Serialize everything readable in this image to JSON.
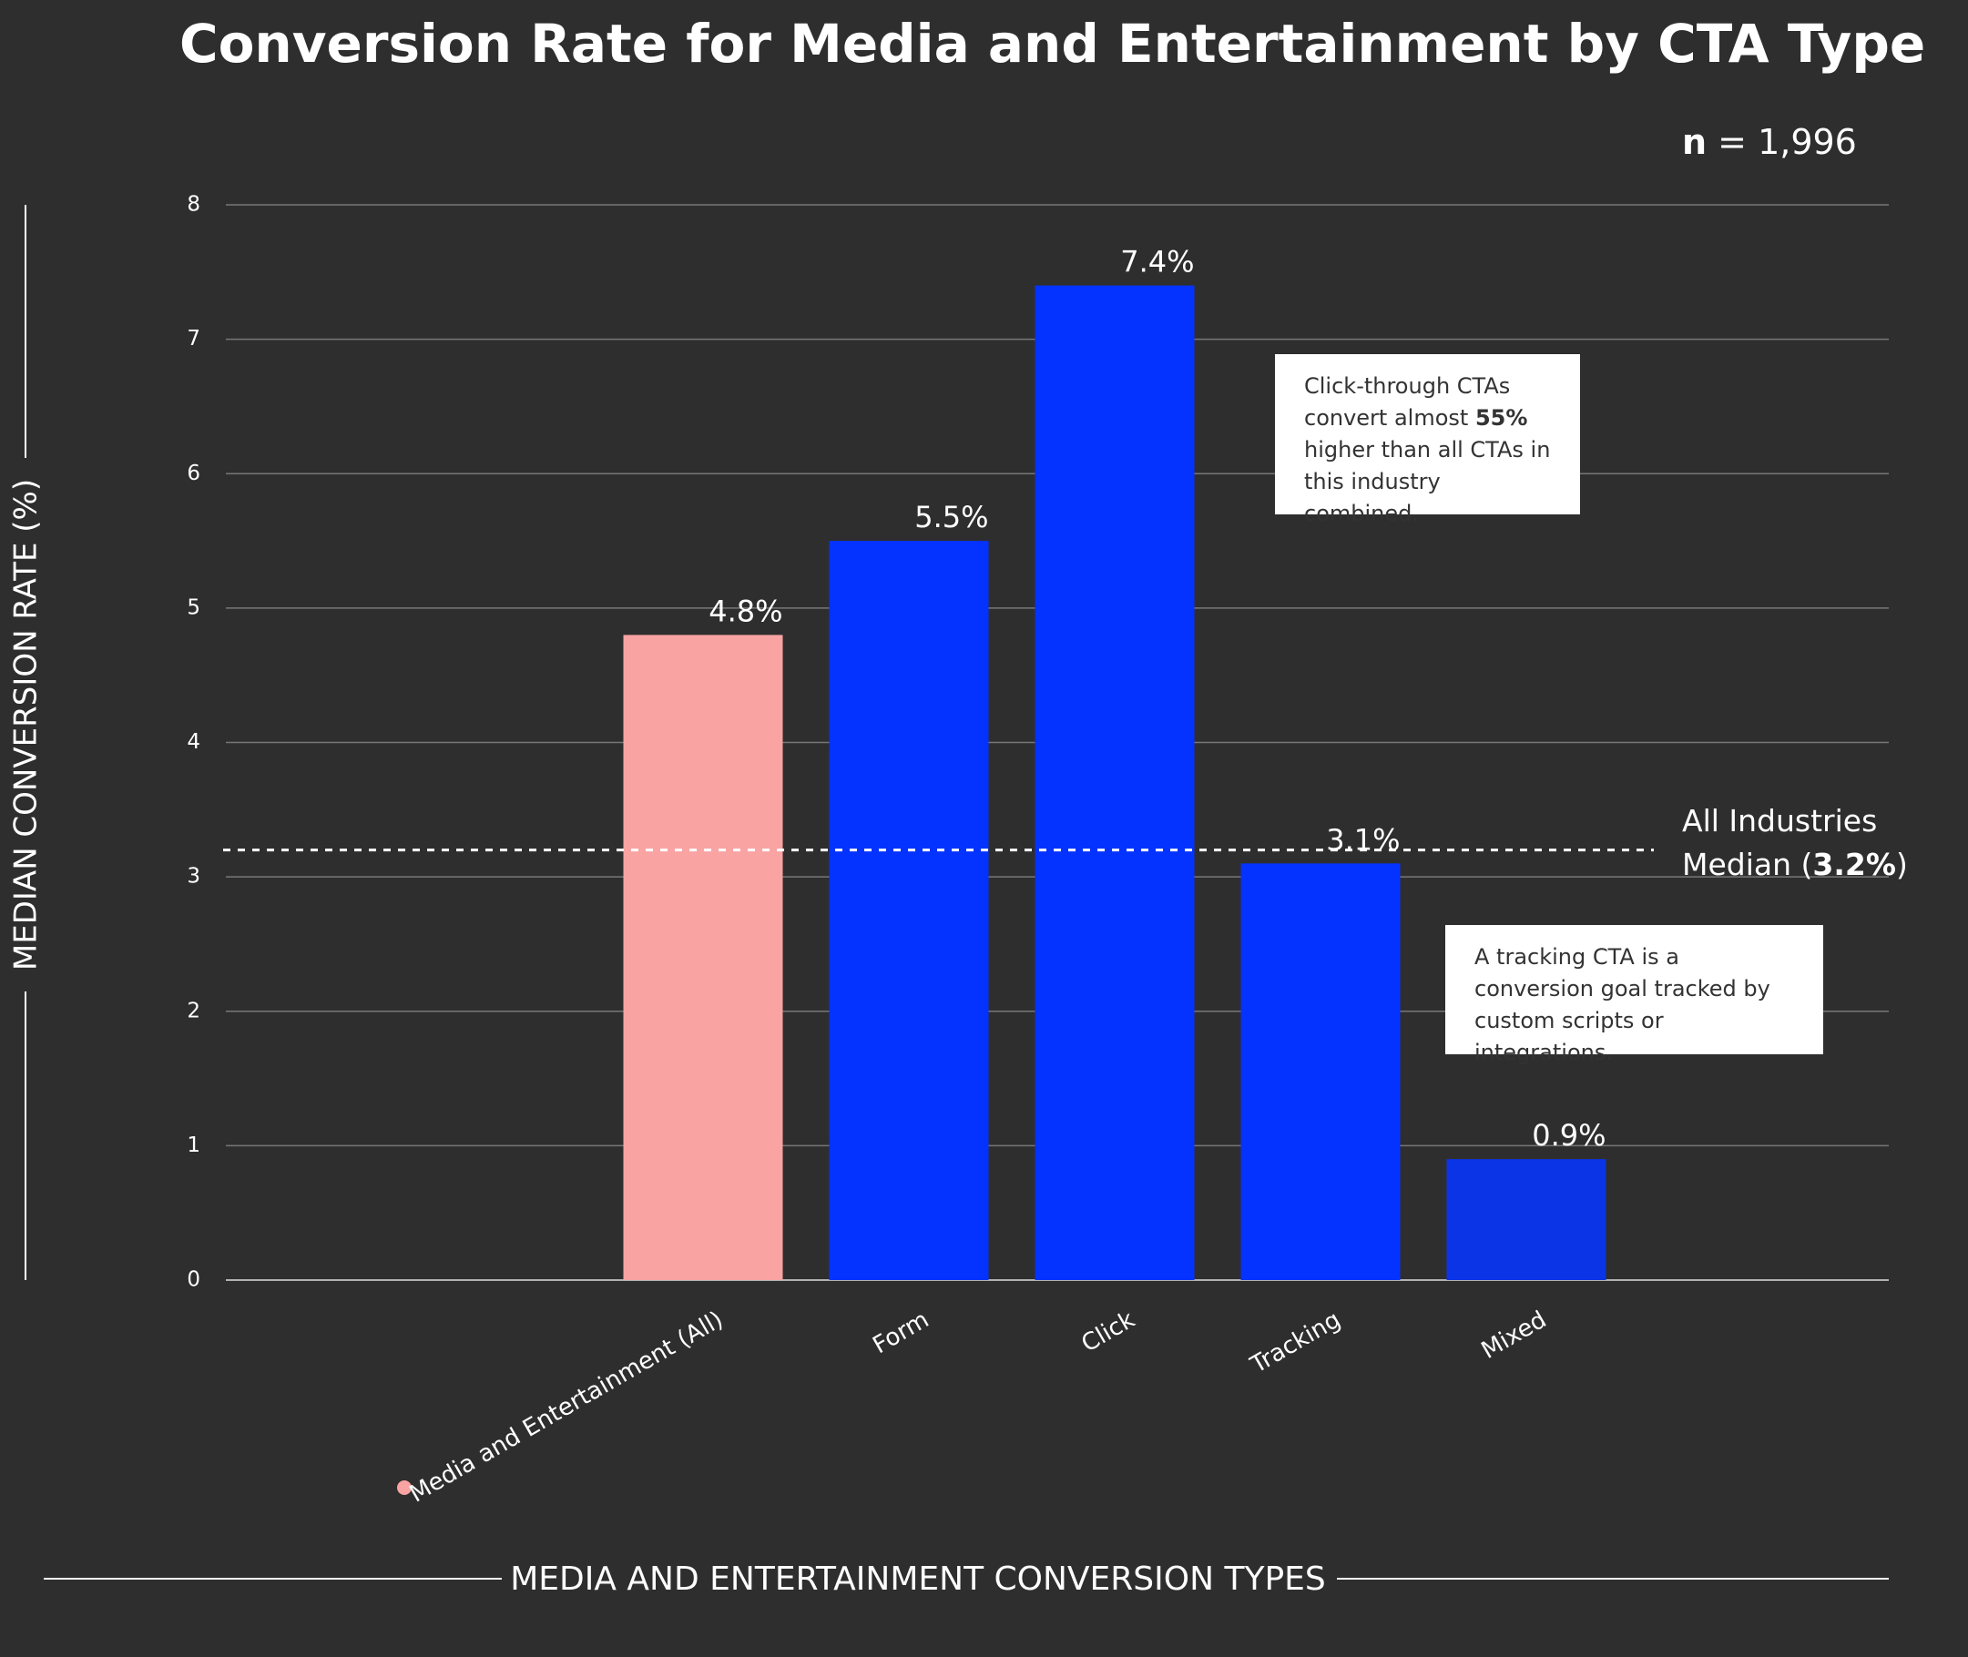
{
  "chart_data": {
    "type": "bar",
    "title": "Conversion Rate for Media and Entertainment by CTA Type",
    "sample_size": {
      "label": "n",
      "text": "= 1,996"
    },
    "categories": [
      "Media and Entertainment (All)",
      "Form",
      "Click",
      "Tracking",
      "Mixed"
    ],
    "values": [
      4.8,
      5.5,
      7.4,
      3.1,
      0.9
    ],
    "value_labels": [
      "4.8%",
      "5.5%",
      "7.4%",
      "3.1%",
      "0.9%"
    ],
    "colors": [
      "#f9a3a3",
      "#0433ff",
      "#0433ff",
      "#0433ff",
      "#0a34e6"
    ],
    "ylim": [
      0,
      8
    ],
    "yticks": [
      0,
      1,
      2,
      3,
      4,
      5,
      6,
      7,
      8
    ],
    "grid": true,
    "y_label": "MEDIAN CONVERSION RATE (%)",
    "x_label": "MEDIA AND ENTERTAINMENT CONVERSION TYPES",
    "reference_line": {
      "value": 3.2,
      "label": [
        "All Industries",
        "Median (",
        "3.2%",
        ")"
      ]
    },
    "annotations": [
      {
        "text": [
          "Click-through CTAs convert almost ",
          "55%",
          " higher than all CTAs in this industry combined."
        ]
      },
      {
        "text": [
          "A tracking CTA is a conversion goal tracked by custom scripts or integrations."
        ]
      }
    ]
  }
}
